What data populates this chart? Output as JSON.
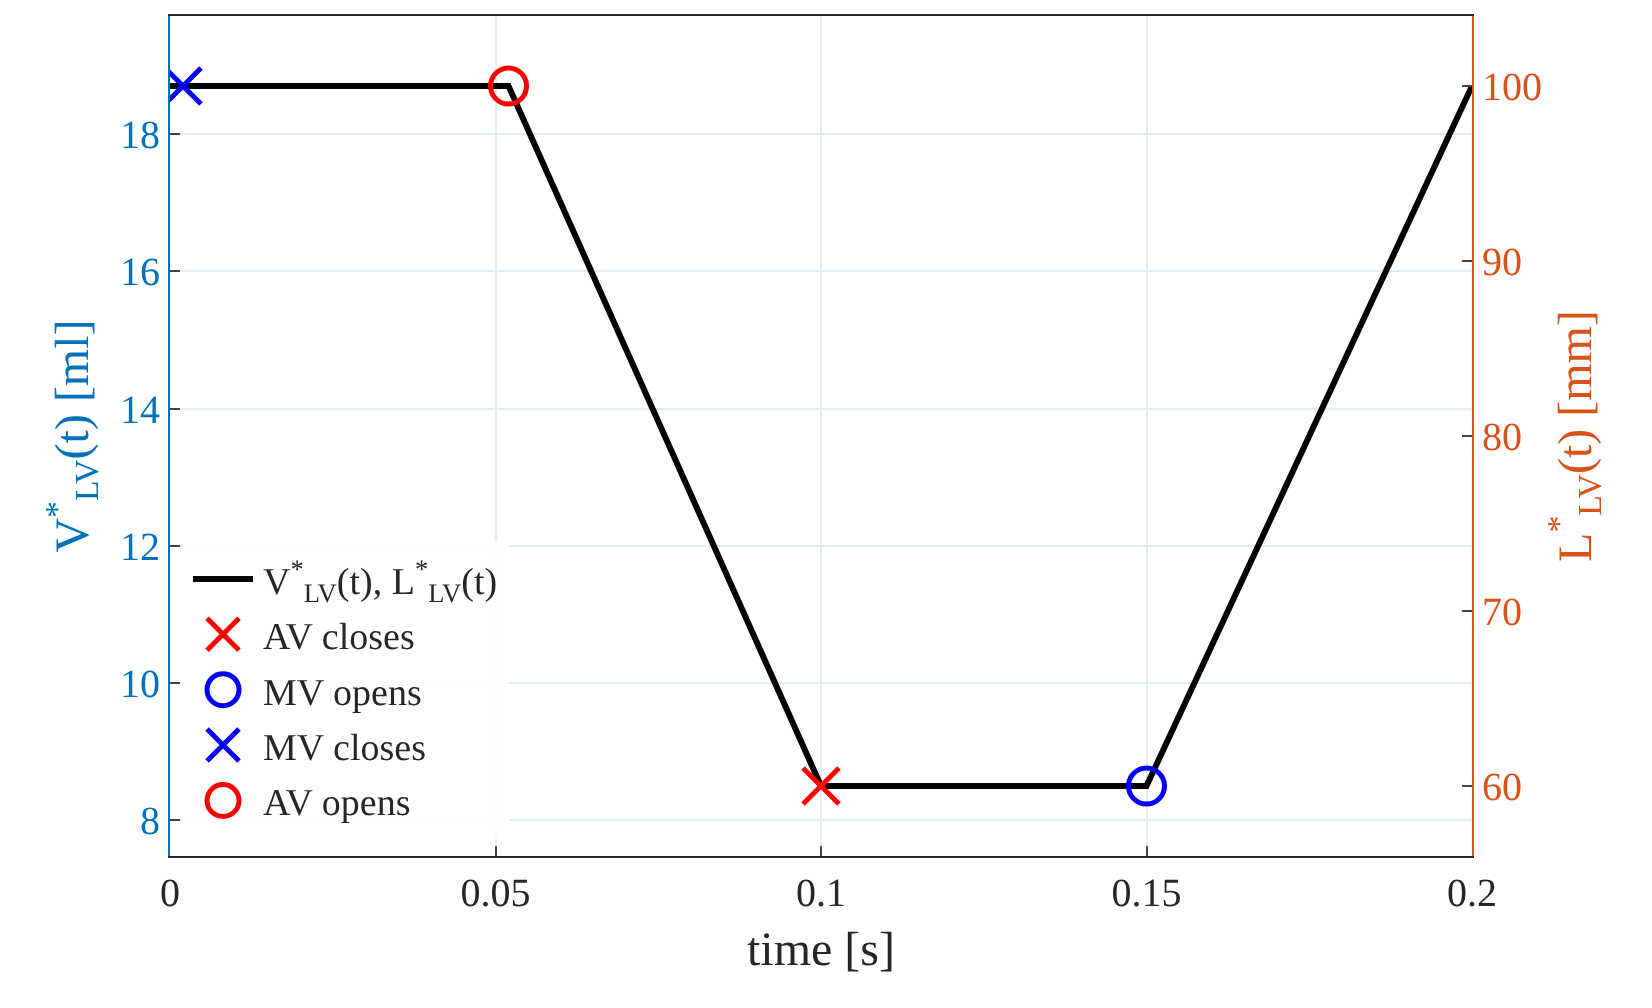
{
  "chart_data": {
    "type": "line",
    "xlabel": "time [s]",
    "ylabel": "V$^{*}$$_{LV}$(t) [ml]",
    "y2label": "L$^{*}$$_{LV}$(t) [mm]",
    "xlim": [
      0,
      0.2
    ],
    "xticks": [
      0,
      0.05,
      0.1,
      0.15,
      0.2
    ],
    "ylim": [
      7.48,
      19.72
    ],
    "yticks": [
      8,
      10,
      12,
      14,
      16,
      18
    ],
    "y2lim": [
      56,
      104
    ],
    "y2ticks": [
      60,
      70,
      80,
      90,
      100
    ],
    "grid": true,
    "legend": "bottom left",
    "series": [
      {
        "name": "V$^{*}$$_{LV}$(t), L$^{*}$$_{LV}$(t)",
        "color": "#000000",
        "marker": "none",
        "line_style": "solid",
        "x": [
          0,
          0.052,
          0.1,
          0.15,
          0.2
        ],
        "values": [
          18.7,
          18.7,
          8.5,
          8.5,
          18.7
        ]
      },
      {
        "name": "AV closes",
        "type": "scatter",
        "color": "#ff0000",
        "marker": "cross",
        "x": [
          0.1
        ],
        "values": [
          8.5
        ]
      },
      {
        "name": "MV opens",
        "type": "scatter",
        "color": "#0000ff",
        "marker": "circle",
        "x": [
          0.15
        ],
        "values": [
          8.5
        ]
      },
      {
        "name": "MV closes",
        "type": "scatter",
        "color": "#0000ff",
        "marker": "cross",
        "x": [
          0.002
        ],
        "values": [
          18.7
        ]
      },
      {
        "name": "AV opens",
        "type": "scatter",
        "color": "#ff0000",
        "marker": "circle",
        "x": [
          0.052
        ],
        "values": [
          18.7
        ]
      }
    ]
  }
}
